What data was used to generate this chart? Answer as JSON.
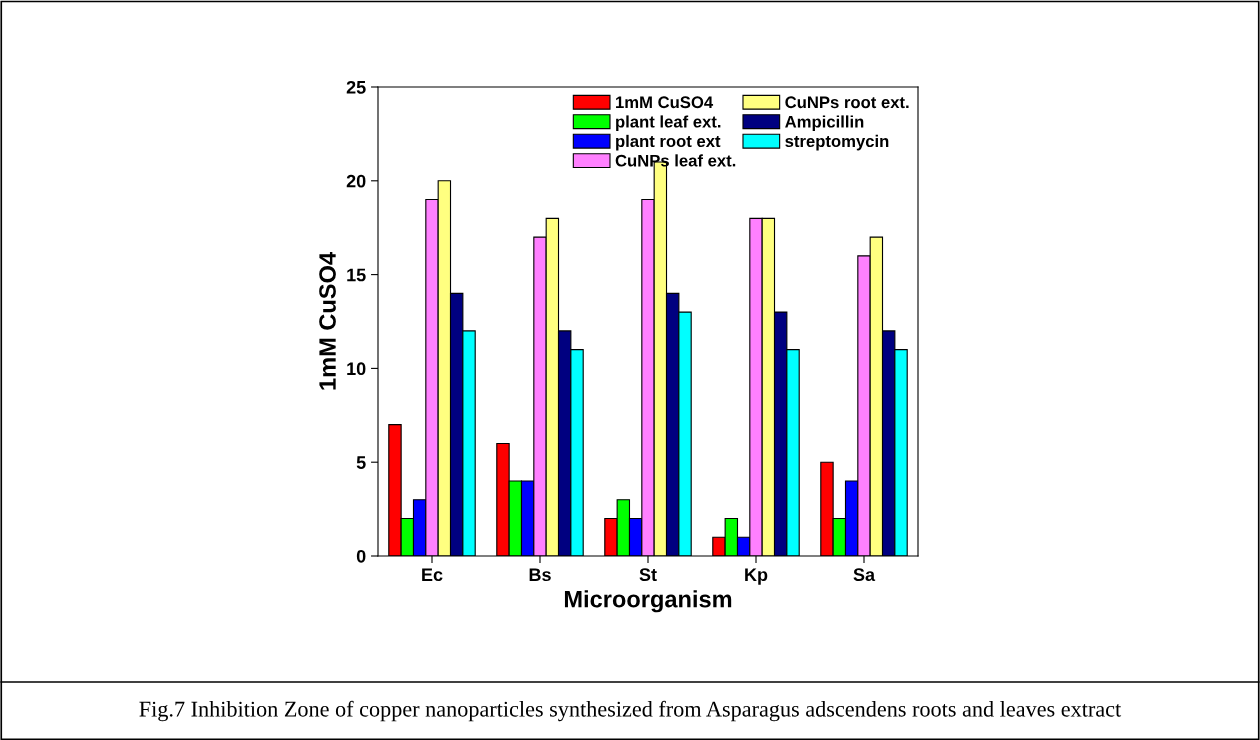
{
  "chart_data": {
    "type": "bar",
    "xlabel": "Microorganism",
    "ylabel": "1mM CuSO4",
    "categories": [
      "Ec",
      "Bs",
      "St",
      "Kp",
      "Sa"
    ],
    "series": [
      {
        "name": "1mM CuSO4",
        "color": "#ff0000",
        "values": [
          7,
          6,
          2,
          1,
          5
        ]
      },
      {
        "name": "plant leaf ext.",
        "color": "#00ff00",
        "values": [
          2,
          4,
          3,
          2,
          2
        ]
      },
      {
        "name": "plant root ext",
        "color": "#0000ff",
        "values": [
          3,
          4,
          2,
          1,
          4
        ]
      },
      {
        "name": "CuNPs leaf ext.",
        "color": "#ff80ff",
        "values": [
          19,
          17,
          19,
          18,
          16
        ]
      },
      {
        "name": "CuNPs root ext.",
        "color": "#ffff80",
        "values": [
          20,
          18,
          21,
          18,
          17
        ]
      },
      {
        "name": "Ampicillin",
        "color": "#000080",
        "values": [
          14,
          12,
          14,
          13,
          12
        ]
      },
      {
        "name": "streptomycin",
        "color": "#00ffff",
        "values": [
          12,
          11,
          13,
          11,
          11
        ]
      }
    ],
    "ylim": [
      0,
      25
    ],
    "yticks": [
      0,
      5,
      10,
      15,
      20,
      25
    ],
    "grid": false,
    "legend": "top right",
    "annotations": [
      "Fig.7 Inhibition Zone of copper nanoparticles synthesized from Asparagus adscendens roots and leaves extract"
    ]
  }
}
